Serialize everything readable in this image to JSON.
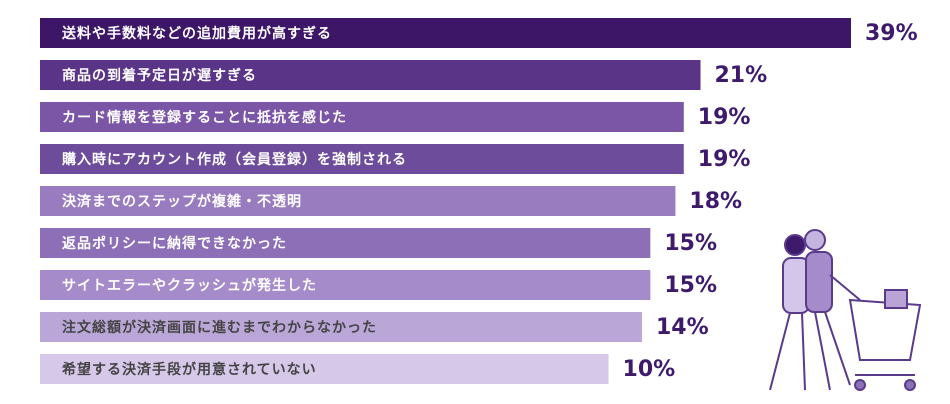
{
  "chart_data": {
    "type": "hbar",
    "categories": [
      "送料や手数料などの追加費用が高すぎる",
      "商品の到着予定日が遅すぎる",
      "カード情報を登録することに抵抗を感じた",
      "購入時にアカウント作成（会員登録）を強制される",
      "決済までのステップが複雑・不透明",
      "返品ポリシーに納得できなかった",
      "サイトエラーやクラッシュが発生した",
      "注文総額が決済画面に進むまでわからなかった",
      "希望する決済手段が用意されていない"
    ],
    "values": [
      39,
      21,
      19,
      19,
      18,
      15,
      15,
      14,
      10
    ],
    "value_labels": [
      "39%",
      "21%",
      "19%",
      "19%",
      "18%",
      "15%",
      "15%",
      "14%",
      "10%"
    ],
    "colors": [
      "#3d1668",
      "#5a3486",
      "#7b56a6",
      "#6e4c9c",
      "#987cbf",
      "#8c6fb6",
      "#a58bc9",
      "#baa6d7",
      "#d6c8e9"
    ],
    "xlim": [
      -58,
      39
    ]
  }
}
